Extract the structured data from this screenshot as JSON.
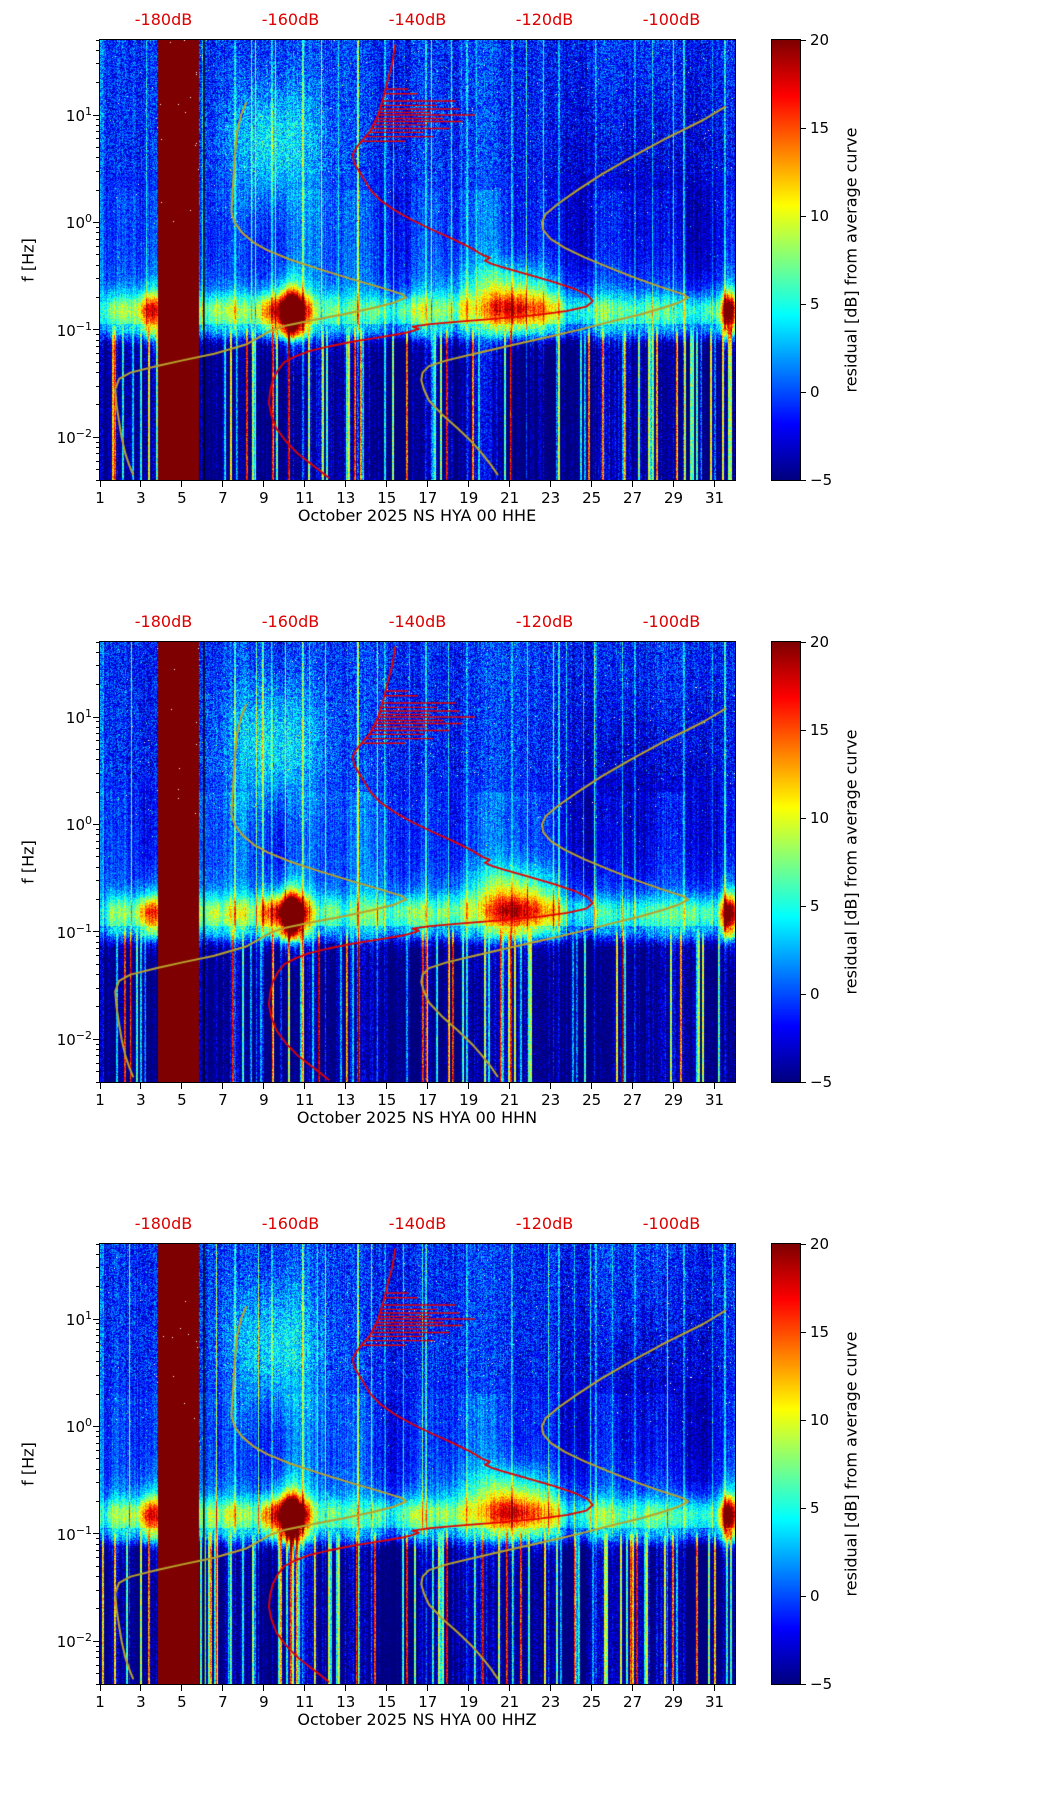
{
  "chart_data": {
    "type": "heatmap",
    "description": "Three stacked PSD-residual spectrograms (jet colormap, residual dB from average curve) for station NS HYA location 00, October 2025, channels HHE/HHN/HHZ, with red median PSD curve and olive Peterson NLNM/NHNM model curves plotted against the red top dB axis.",
    "x_axis": {
      "quantity": "day of October 2025",
      "range": [
        1,
        32
      ],
      "tick_values": [
        1,
        3,
        5,
        7,
        9,
        11,
        13,
        15,
        17,
        19,
        21,
        23,
        25,
        27,
        29,
        31
      ],
      "tick_labels": [
        "1",
        "3",
        "5",
        "7",
        "9",
        "11",
        "13",
        "15",
        "17",
        "19",
        "21",
        "23",
        "25",
        "27",
        "29",
        "31"
      ]
    },
    "y_axis": {
      "label": "f [Hz]",
      "scale": "log",
      "range_hz": [
        0.004,
        50
      ],
      "tick_exponents": [
        1,
        0,
        -1,
        -2
      ],
      "tick_exponent_labels": [
        "1",
        "0",
        "−1",
        "−2"
      ]
    },
    "top_axis": {
      "tick_labels": [
        "-180dB",
        "-160dB",
        "-140dB",
        "-120dB",
        "-100dB"
      ],
      "tick_values": [
        -180,
        -160,
        -140,
        -120,
        -100
      ],
      "db_range": [
        -190,
        -90
      ],
      "color": "#dd0000"
    },
    "colorbar": {
      "label": "residual [dB] from average curve",
      "tick_values": [
        20,
        15,
        10,
        5,
        0,
        -5
      ],
      "tick_labels": [
        "20",
        "15",
        "10",
        "5",
        "0",
        "−5"
      ],
      "vmin": -5,
      "vmax": 20,
      "colormap": "jet"
    },
    "panels": [
      {
        "channel": "HHE",
        "xlabel": "October 2025 NS HYA 00 HHE",
        "seed": 11
      },
      {
        "channel": "HHN",
        "xlabel": "October 2025 NS HYA 00 HHN",
        "seed": 23
      },
      {
        "channel": "HHZ",
        "xlabel": "October 2025 NS HYA 00 HHZ",
        "seed": 37
      }
    ],
    "overlays": {
      "median_psd": {
        "color": "#e60000",
        "points": [
          [
            45,
            -143.5
          ],
          [
            30,
            -144.0
          ],
          [
            20,
            -144.8
          ],
          [
            15,
            -145.3
          ],
          [
            12,
            -145.8
          ],
          [
            10,
            -146.2
          ],
          [
            8.5,
            -146.8
          ],
          [
            7,
            -147.5
          ],
          [
            6,
            -148.5
          ],
          [
            5,
            -149.6
          ],
          [
            4.3,
            -150.2
          ],
          [
            3.6,
            -150.0
          ],
          [
            3,
            -149.2
          ],
          [
            2.4,
            -148.2
          ],
          [
            2,
            -147.4
          ],
          [
            1.6,
            -145.8
          ],
          [
            1.3,
            -143.6
          ],
          [
            1.05,
            -140.8
          ],
          [
            0.85,
            -137.6
          ],
          [
            0.7,
            -134.4
          ],
          [
            0.58,
            -131.6
          ],
          [
            0.5,
            -129.8
          ],
          [
            0.47,
            -128.6
          ],
          [
            0.44,
            -129.4
          ],
          [
            0.41,
            -128.2
          ],
          [
            0.38,
            -126.4
          ],
          [
            0.33,
            -122.8
          ],
          [
            0.28,
            -118.6
          ],
          [
            0.24,
            -115.2
          ],
          [
            0.21,
            -113.2
          ],
          [
            0.185,
            -112.4
          ],
          [
            0.165,
            -113.4
          ],
          [
            0.15,
            -116.4
          ],
          [
            0.138,
            -121.0
          ],
          [
            0.128,
            -127.0
          ],
          [
            0.12,
            -133.0
          ],
          [
            0.113,
            -138.0
          ],
          [
            0.107,
            -140.8
          ],
          [
            0.102,
            -139.8
          ],
          [
            0.097,
            -141.0
          ],
          [
            0.092,
            -142.6
          ],
          [
            0.085,
            -146.0
          ],
          [
            0.078,
            -150.0
          ],
          [
            0.07,
            -154.0
          ],
          [
            0.063,
            -157.2
          ],
          [
            0.056,
            -159.4
          ],
          [
            0.05,
            -161.0
          ],
          [
            0.042,
            -162.0
          ],
          [
            0.034,
            -162.8
          ],
          [
            0.027,
            -163.2
          ],
          [
            0.021,
            -163.4
          ],
          [
            0.016,
            -163.0
          ],
          [
            0.012,
            -162.2
          ],
          [
            0.009,
            -160.6
          ],
          [
            0.007,
            -158.8
          ],
          [
            0.0058,
            -157.0
          ],
          [
            0.0048,
            -155.2
          ],
          [
            0.0042,
            -154.0
          ]
        ],
        "spikes": [
          [
            13.5,
            -134
          ],
          [
            12.3,
            -137
          ],
          [
            11.4,
            -133.5
          ],
          [
            10.6,
            -138
          ],
          [
            10,
            -131
          ],
          [
            9.3,
            -136
          ],
          [
            8.7,
            -133
          ],
          [
            8.1,
            -138.5
          ],
          [
            7.5,
            -135
          ],
          [
            6.9,
            -139
          ],
          [
            6.3,
            -137.5
          ],
          [
            5.7,
            -142
          ],
          [
            15.8,
            -140
          ],
          [
            17.5,
            -141.5
          ]
        ]
      },
      "nlnm": {
        "color": "#b9a22b",
        "points": [
          [
            13,
            -167.0
          ],
          [
            10,
            -167.8
          ],
          [
            7,
            -168.4
          ],
          [
            4,
            -168.8
          ],
          [
            2.5,
            -169.0
          ],
          [
            1.6,
            -169.2
          ],
          [
            1.25,
            -169.3
          ],
          [
            1.0,
            -168.8
          ],
          [
            0.8,
            -167.6
          ],
          [
            0.65,
            -165.8
          ],
          [
            0.55,
            -163.6
          ],
          [
            0.45,
            -160.0
          ],
          [
            0.37,
            -155.6
          ],
          [
            0.3,
            -150.6
          ],
          [
            0.25,
            -146.0
          ],
          [
            0.215,
            -142.4
          ],
          [
            0.2,
            -141.8
          ],
          [
            0.18,
            -143.6
          ],
          [
            0.16,
            -147.0
          ],
          [
            0.14,
            -151.6
          ],
          [
            0.125,
            -156.0
          ],
          [
            0.11,
            -160.6
          ],
          [
            0.098,
            -163.2
          ],
          [
            0.085,
            -165.0
          ],
          [
            0.073,
            -167.0
          ],
          [
            0.06,
            -172.0
          ],
          [
            0.052,
            -177.0
          ],
          [
            0.046,
            -181.0
          ],
          [
            0.04,
            -185.2
          ],
          [
            0.035,
            -187.0
          ],
          [
            0.028,
            -187.6
          ],
          [
            0.02,
            -187.4
          ],
          [
            0.014,
            -187.0
          ],
          [
            0.01,
            -186.6
          ],
          [
            0.007,
            -186.0
          ],
          [
            0.0055,
            -185.4
          ],
          [
            0.0045,
            -184.8
          ]
        ]
      },
      "nhnm": {
        "color": "#b9a22b",
        "points": [
          [
            12,
            -91.5
          ],
          [
            9,
            -95.0
          ],
          [
            6,
            -101.0
          ],
          [
            4,
            -106.5
          ],
          [
            2.8,
            -111.0
          ],
          [
            2,
            -114.8
          ],
          [
            1.5,
            -117.8
          ],
          [
            1.2,
            -119.8
          ],
          [
            1.0,
            -120.4
          ],
          [
            0.85,
            -120.2
          ],
          [
            0.7,
            -119.0
          ],
          [
            0.58,
            -116.8
          ],
          [
            0.47,
            -113.6
          ],
          [
            0.38,
            -109.8
          ],
          [
            0.3,
            -105.4
          ],
          [
            0.25,
            -101.6
          ],
          [
            0.215,
            -98.2
          ],
          [
            0.2,
            -97.4
          ],
          [
            0.18,
            -98.8
          ],
          [
            0.16,
            -101.4
          ],
          [
            0.14,
            -104.8
          ],
          [
            0.12,
            -109.4
          ],
          [
            0.1,
            -114.6
          ],
          [
            0.085,
            -119.8
          ],
          [
            0.072,
            -125.2
          ],
          [
            0.06,
            -131.0
          ],
          [
            0.052,
            -135.4
          ],
          [
            0.046,
            -138.2
          ],
          [
            0.04,
            -139.2
          ],
          [
            0.034,
            -139.4
          ],
          [
            0.028,
            -139.0
          ],
          [
            0.022,
            -138.2
          ],
          [
            0.016,
            -136.0
          ],
          [
            0.012,
            -133.6
          ],
          [
            0.009,
            -131.4
          ],
          [
            0.007,
            -129.8
          ],
          [
            0.0055,
            -128.4
          ],
          [
            0.0045,
            -127.4
          ]
        ]
      }
    },
    "features": {
      "saturated_band_days": [
        3.85,
        5.85
      ],
      "black_line_day": 6.07,
      "microseism_center_hz": 0.15,
      "microseism_events": [
        [
          1.6,
          0.35,
          5
        ],
        [
          2.3,
          0.3,
          4
        ],
        [
          3.4,
          0.45,
          9
        ],
        [
          4.8,
          1.1,
          8
        ],
        [
          6.6,
          0.25,
          4
        ],
        [
          7.4,
          0.35,
          6
        ],
        [
          8.2,
          0.3,
          5
        ],
        [
          9.0,
          0.3,
          6
        ],
        [
          9.8,
          0.5,
          13
        ],
        [
          10.45,
          0.35,
          22
        ],
        [
          11.2,
          0.3,
          7
        ],
        [
          12.3,
          0.4,
          5
        ],
        [
          13.4,
          0.35,
          4
        ],
        [
          14.5,
          0.4,
          5
        ],
        [
          15.6,
          0.4,
          4
        ],
        [
          16.6,
          0.5,
          6
        ],
        [
          17.8,
          0.4,
          5
        ],
        [
          18.8,
          0.4,
          5
        ],
        [
          20.3,
          0.7,
          7
        ],
        [
          21.4,
          0.6,
          8
        ],
        [
          22.4,
          0.5,
          6
        ],
        [
          23.3,
          0.4,
          6
        ],
        [
          24.5,
          0.4,
          4
        ],
        [
          25.6,
          0.5,
          5
        ],
        [
          26.8,
          0.4,
          4
        ],
        [
          27.8,
          0.4,
          5
        ],
        [
          28.8,
          0.4,
          4
        ],
        [
          29.8,
          0.4,
          5
        ],
        [
          30.7,
          0.35,
          5
        ],
        [
          31.7,
          0.3,
          18
        ]
      ],
      "bright_line_days": [
        [
          7.6,
          5
        ],
        [
          9.4,
          4
        ],
        [
          10.9,
          6
        ],
        [
          13.6,
          8
        ],
        [
          14.9,
          4
        ],
        [
          16.9,
          5
        ],
        [
          18.9,
          4
        ],
        [
          21.1,
          4
        ],
        [
          23.4,
          5
        ],
        [
          25.2,
          3.5
        ],
        [
          27.1,
          4
        ],
        [
          29.5,
          5
        ],
        [
          30.9,
          4
        ],
        [
          31.5,
          6
        ]
      ],
      "high_freq_patch": {
        "day": 9.5,
        "day_sigma": 1.6,
        "log10f_center": 0.75,
        "log10f_sigma": 0.42,
        "amp": 5.5
      },
      "quiet_zone": {
        "day": 27.5,
        "day_sigma": 3.0,
        "log10f_center": 0.1,
        "log10f_sigma": 0.75,
        "amp": 2.8
      },
      "secondary_band": {
        "day": 21.0,
        "day_sigma": 1.6,
        "log10f_center": -0.62,
        "log10f_sigma": 0.17,
        "amp": 6.0
      }
    }
  }
}
